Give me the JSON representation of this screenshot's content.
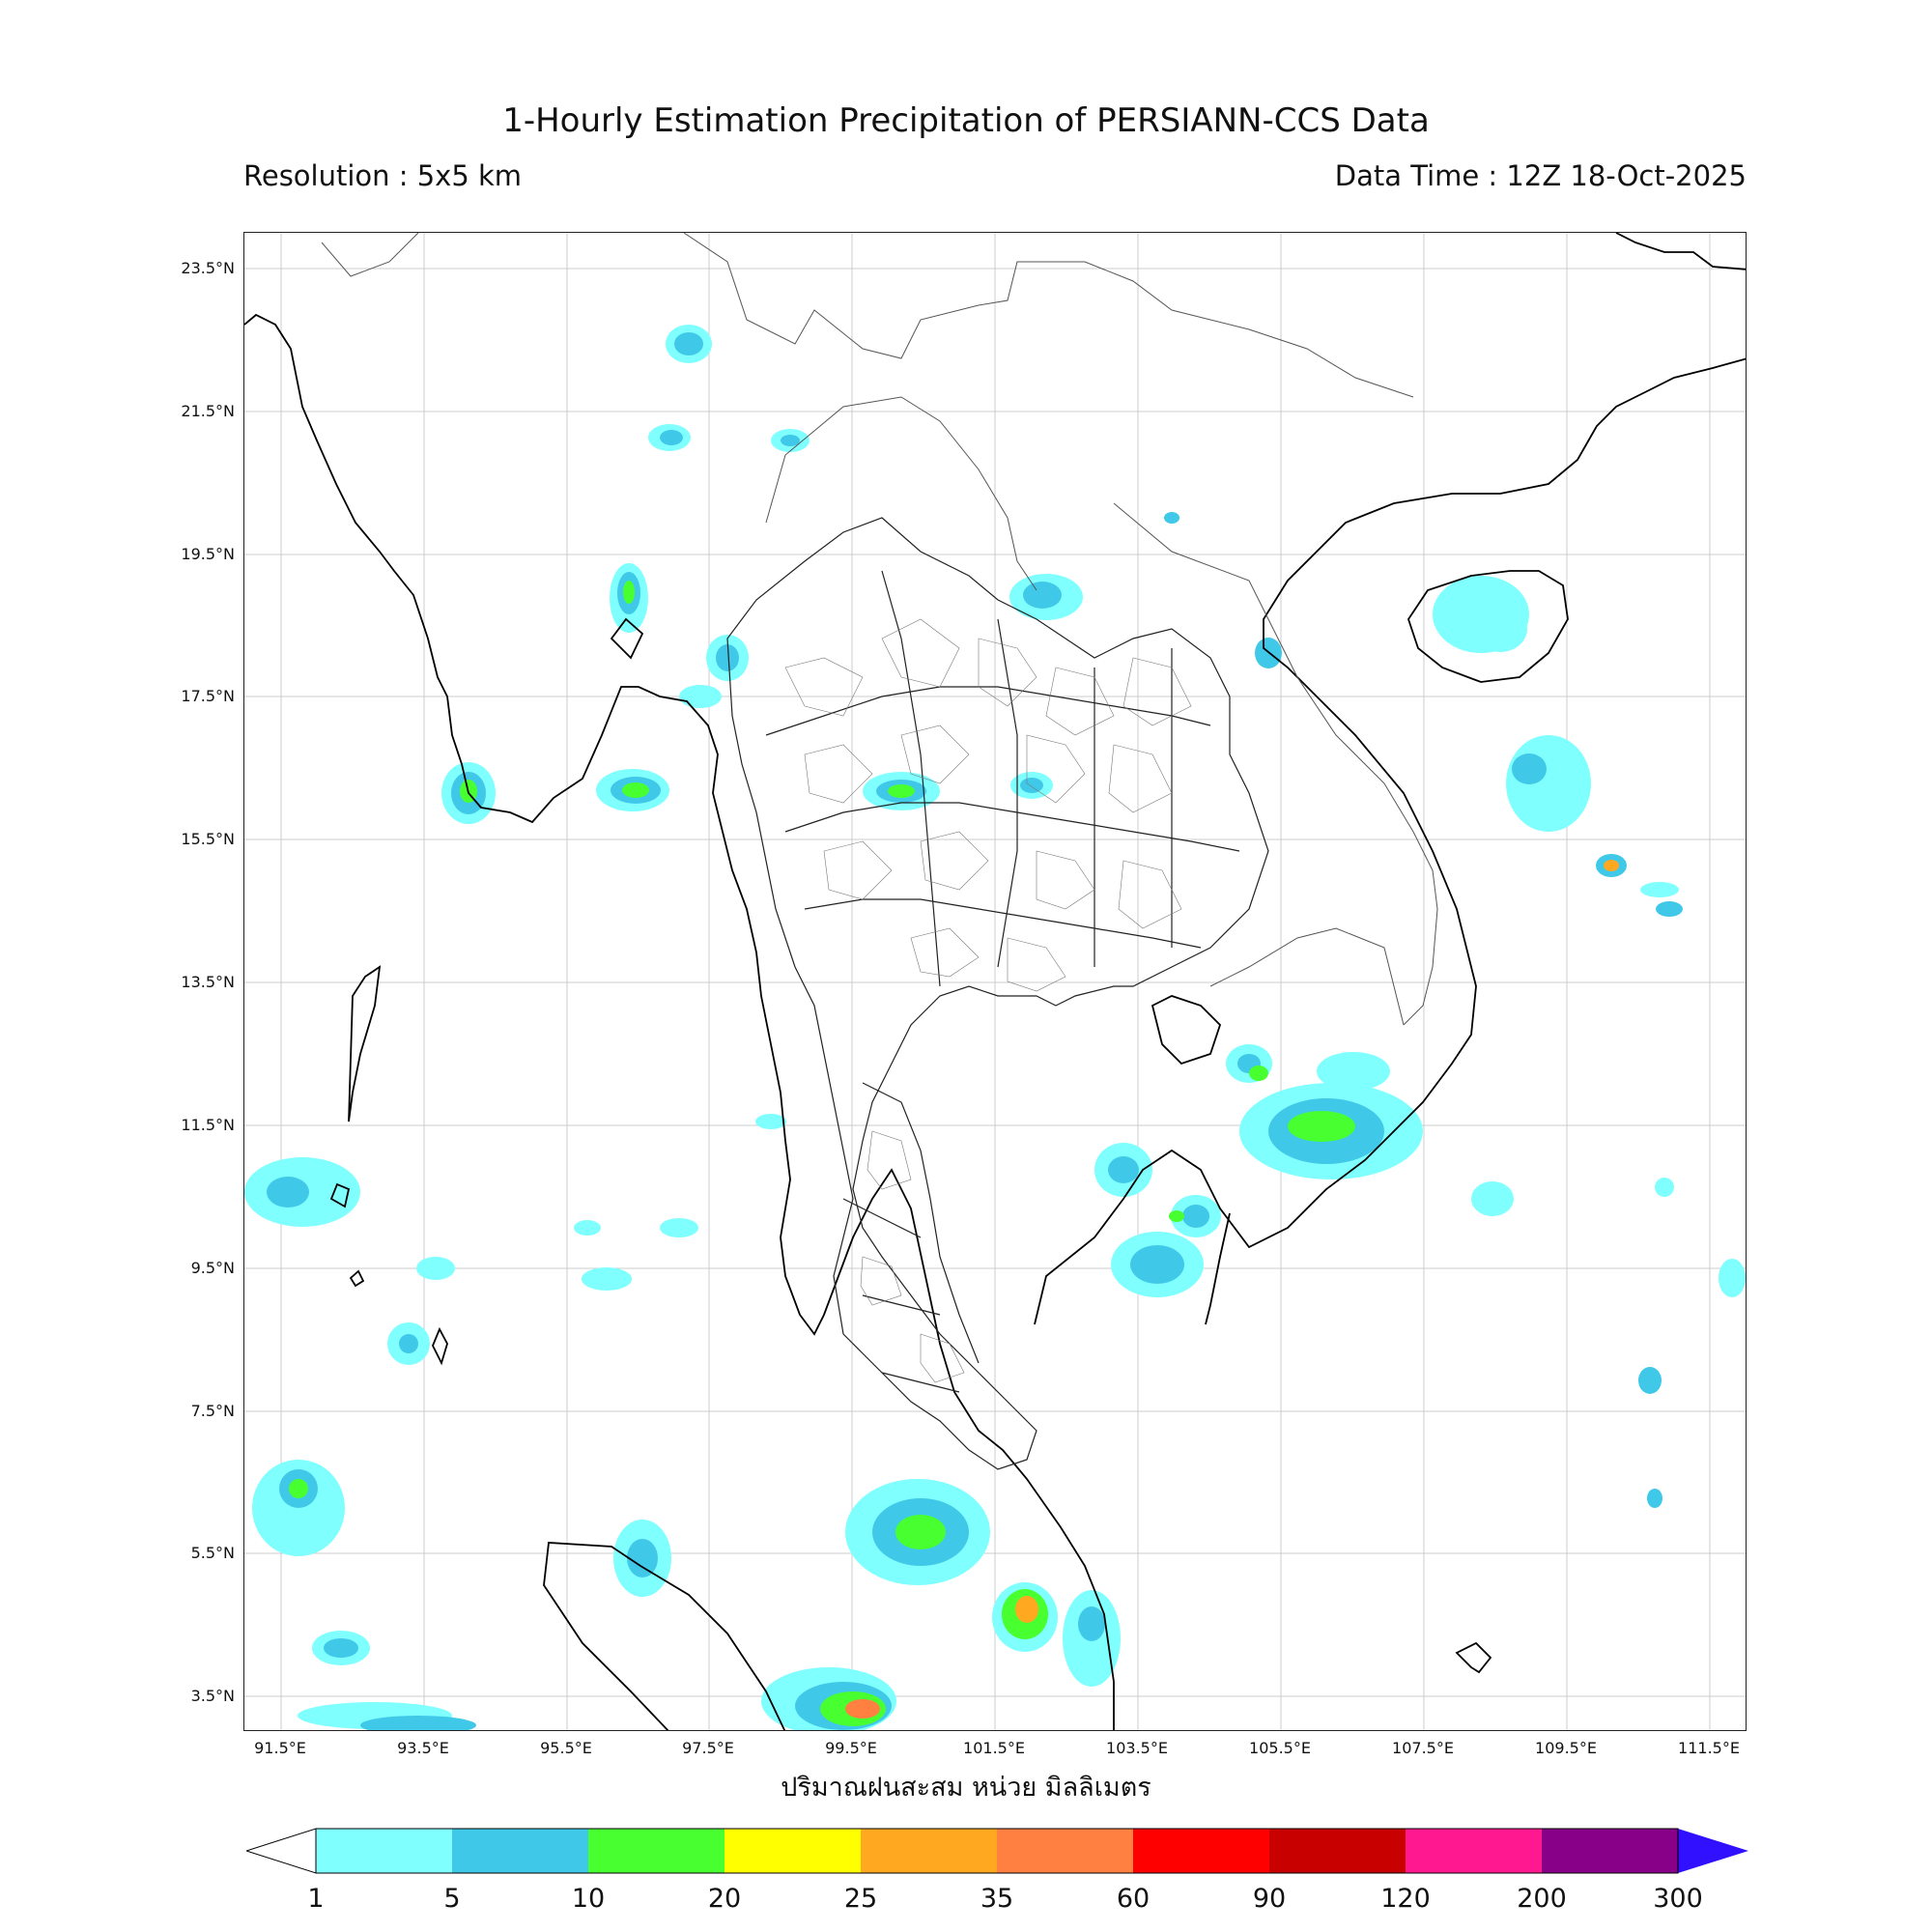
{
  "header": {
    "title": "1-Hourly Estimation Precipitation of PERSIANN-CCS Data",
    "resolution": "Resolution : 5x5 km",
    "data_time": "Data Time : 12Z 18-Oct-2025"
  },
  "axes": {
    "lat_ticks": [
      "23.5°N",
      "21.5°N",
      "19.5°N",
      "17.5°N",
      "15.5°N",
      "13.5°N",
      "11.5°N",
      "9.5°N",
      "7.5°N",
      "5.5°N",
      "3.5°N"
    ],
    "lon_ticks": [
      "91.5°E",
      "93.5°E",
      "95.5°E",
      "97.5°E",
      "99.5°E",
      "101.5°E",
      "103.5°E",
      "105.5°E",
      "107.5°E",
      "109.5°E",
      "111.5°E"
    ],
    "xlabel": "ปริมาณฝนสะสม หน่วย มิลลิเมตร"
  },
  "colorbar": {
    "labels": [
      "1",
      "5",
      "10",
      "20",
      "25",
      "35",
      "60",
      "90",
      "120",
      "200",
      "300"
    ],
    "colors": [
      "#80ffff",
      "#40c8e8",
      "#48ff30",
      "#ffff00",
      "#ffa820",
      "#ff8040",
      "#ff0000",
      "#c80000",
      "#ff1890",
      "#880088",
      "#3010ff"
    ],
    "under_color": "#ffffff"
  }
}
